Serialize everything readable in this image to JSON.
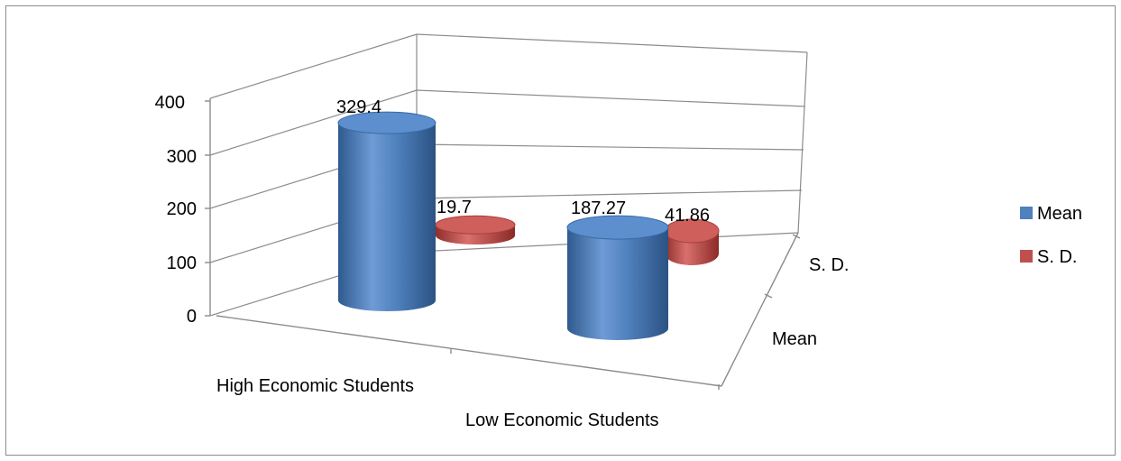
{
  "chart_data": {
    "type": "bar",
    "style": "3d-cylinder",
    "categories": [
      "High Economic Students",
      "Low Economic Students"
    ],
    "depth_labels": [
      "Mean",
      "S. D."
    ],
    "series": [
      {
        "name": "Mean",
        "values": [
          329.4,
          187.27
        ],
        "labels": [
          "329.4",
          "187.27"
        ],
        "color": "#4f81bd"
      },
      {
        "name": "S. D.",
        "values": [
          19.7,
          41.86
        ],
        "labels": [
          "19.7",
          "41.86"
        ],
        "color": "#c0504d"
      }
    ],
    "y_ticks": [
      "0",
      "100",
      "200",
      "300",
      "400"
    ],
    "ylim": [
      0,
      400
    ],
    "grid": true,
    "legend": {
      "position": "right",
      "items": [
        "Mean",
        "S. D."
      ]
    }
  },
  "colors": {
    "mean": "#4f81bd",
    "sd": "#c0504d",
    "axis": "#8c8c8c"
  }
}
